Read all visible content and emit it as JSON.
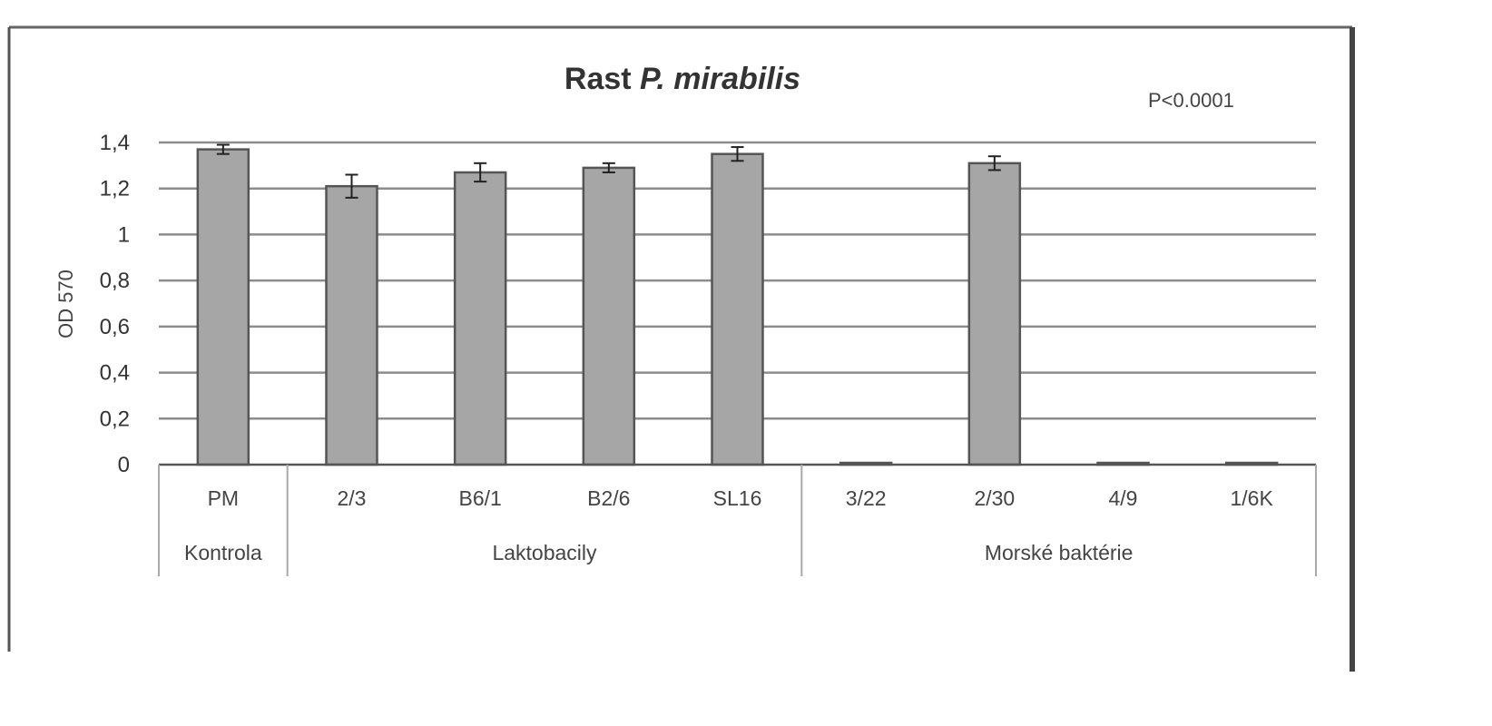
{
  "chart_data": {
    "type": "bar",
    "title_main": "Rast ",
    "title_italic": "P. mirabilis",
    "annotation": "P<0.0001",
    "ylabel": "OD 570",
    "xlabel": "",
    "ylim": [
      0,
      1.4
    ],
    "yticks": [
      "0",
      "0,2",
      "0,4",
      "0,6",
      "0,8",
      "1",
      "1,2",
      "1,4"
    ],
    "grid": true,
    "categories": [
      "PM",
      "2/3",
      "B6/1",
      "B2/6",
      "SL16",
      "3/22",
      "2/30",
      "4/9",
      "1/6K"
    ],
    "values": [
      1.37,
      1.21,
      1.27,
      1.29,
      1.35,
      0.0,
      1.31,
      0.0,
      0.0
    ],
    "errors": [
      0.02,
      0.05,
      0.04,
      0.02,
      0.03,
      0.0,
      0.03,
      0.0,
      0.0
    ],
    "groups": [
      {
        "label": "Kontrola",
        "categories": [
          "PM"
        ]
      },
      {
        "label": "Laktobacily",
        "categories": [
          "2/3",
          "B6/1",
          "B2/6",
          "SL16"
        ]
      },
      {
        "label": "Morské baktérie",
        "categories": [
          "3/22",
          "2/30",
          "4/9",
          "1/6K"
        ]
      }
    ],
    "colors": {
      "bar": "#a6a6a6",
      "bar_edge": "#555555",
      "grid": "#8c8c8c",
      "frame": "#555555"
    }
  }
}
